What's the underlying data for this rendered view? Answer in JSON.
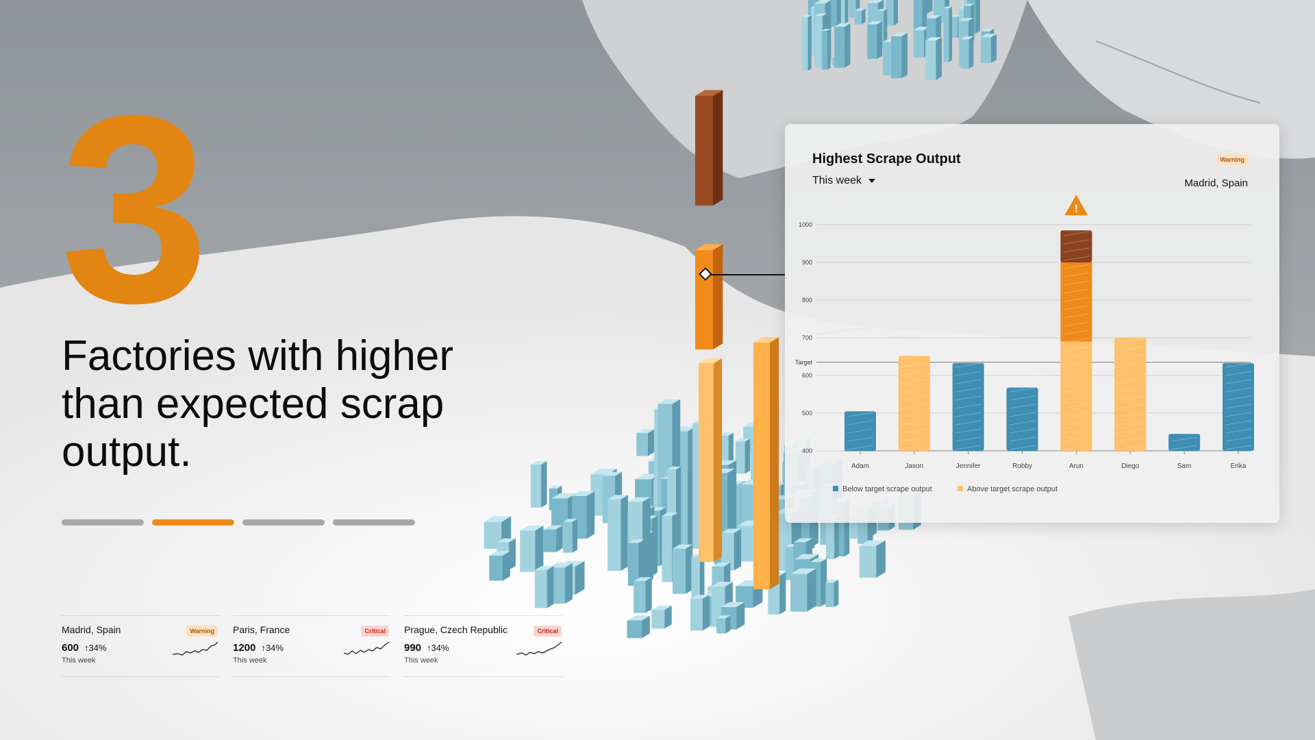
{
  "hero": {
    "number": "3",
    "text": "Factories with higher than expected scrap output."
  },
  "pager": {
    "count": 4,
    "active_index": 1
  },
  "cards": [
    {
      "city": "Madrid, Spain",
      "badge": "Warning",
      "value": "600",
      "trend": "34%",
      "period": "This week"
    },
    {
      "city": "Paris, France",
      "badge": "Critical",
      "value": "1200",
      "trend": "34%",
      "period": "This week"
    },
    {
      "city": "Prague, Czech Republic",
      "badge": "Critical",
      "value": "990",
      "trend": "34%",
      "period": "This week"
    }
  ],
  "panel": {
    "title": "Highest Scrape Output",
    "period": "This week",
    "badge": "Warning",
    "location": "Madrid, Spain"
  },
  "colors": {
    "accent": "#ee8a1a",
    "below_target": "#3f8fb5",
    "above_target": "#ffc06a",
    "warning_bg": "#fbe0c2",
    "critical_bg": "#fbd3d0"
  },
  "chart_data": {
    "type": "bar",
    "categories": [
      "Adam",
      "Jason",
      "Jennifer",
      "Robby",
      "Arun",
      "Diego",
      "Sam",
      "Erika"
    ],
    "values": [
      505,
      652,
      633,
      568,
      985,
      700,
      445,
      633
    ],
    "status": [
      "below",
      "above",
      "below",
      "below",
      "above",
      "above",
      "below",
      "below"
    ],
    "ylim": [
      400,
      1000
    ],
    "yticks": [
      400,
      500,
      600,
      700,
      800,
      900,
      1000
    ],
    "target": 635,
    "target_label": "Target",
    "grid": true,
    "legend": [
      {
        "key": "below",
        "label": "Below target scrape output"
      },
      {
        "key": "above",
        "label": "Above target scrape output"
      }
    ],
    "legend_position": "bottom-left",
    "warning_marker_category": "Arun"
  }
}
